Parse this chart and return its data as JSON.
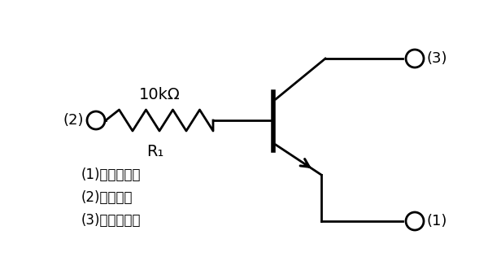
{
  "bg_color": "#ffffff",
  "line_color": "#000000",
  "line_width": 2.0,
  "resistor_label": "10kΩ",
  "resistor_sublabel": "R₁",
  "terminal_labels": {
    "base": "(2)",
    "collector": "(3)",
    "emitter": "(1)"
  },
  "legend_lines": [
    "(1)　エミッタ",
    "(2)　ベース",
    "(3)　コレクタ"
  ],
  "figsize": [
    6.0,
    3.37
  ],
  "dpi": 100
}
